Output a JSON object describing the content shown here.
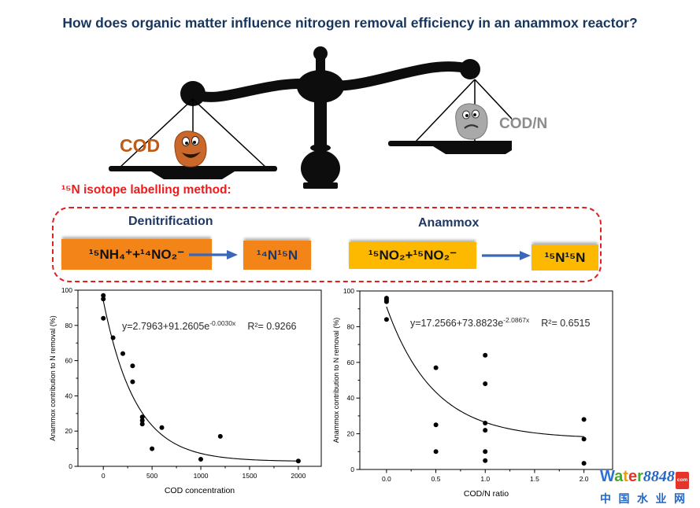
{
  "title": "How does organic matter influence nitrogen removal efficiency in an anammox reactor?",
  "balance": {
    "left_label": "COD",
    "right_label": "COD/N",
    "left_label_color": "#BF5B16",
    "right_label_color": "#8C8C8C"
  },
  "method": {
    "heading": "¹⁵N isotope labelling method:",
    "heading_color": "#EE1C1C",
    "arrow_color": "#3A67B8",
    "processes": [
      {
        "name": "Denitrification",
        "reactant": "¹⁵NH₄⁺+¹⁴NO₂⁻",
        "product": "¹⁴N¹⁵N",
        "box_color": "#F28418"
      },
      {
        "name": "Anammox",
        "reactant": "¹⁵NO₂+¹⁵NO₂⁻",
        "product": "¹⁵N¹⁵N",
        "box_color": "#FCB900"
      }
    ]
  },
  "chart_data": [
    {
      "type": "scatter",
      "title": "",
      "xlabel": "COD concentration",
      "ylabel": "Anammox contribution to N removal (%)",
      "xlim": [
        -260,
        2235
      ],
      "ylim": [
        0,
        100
      ],
      "xticks": [
        {
          "v": 0,
          "l": "0"
        },
        {
          "v": 500,
          "l": "500"
        },
        {
          "v": 1000,
          "l": "1000"
        },
        {
          "v": 1500,
          "l": "1500"
        },
        {
          "v": 2000,
          "l": "2000"
        }
      ],
      "yticks": [
        0,
        20,
        40,
        60,
        80,
        100
      ],
      "xminors": [
        250,
        750,
        1250,
        1750
      ],
      "yminors": [
        10,
        30,
        50,
        70,
        90
      ],
      "points": [
        [
          0,
          97
        ],
        [
          0,
          95
        ],
        [
          0,
          84
        ],
        [
          100,
          73
        ],
        [
          200,
          64
        ],
        [
          300,
          57
        ],
        [
          300,
          48
        ],
        [
          400,
          28
        ],
        [
          400,
          26
        ],
        [
          400,
          24
        ],
        [
          500,
          10
        ],
        [
          600,
          22
        ],
        [
          1000,
          4
        ],
        [
          1200,
          17
        ],
        [
          2000,
          3
        ]
      ],
      "fit": {
        "a": 2.7963,
        "b": 91.2605,
        "k": -0.003,
        "x_start": 0,
        "x_end": 2000
      },
      "equation": {
        "lhs": "y=2.7963+91.2605e",
        "exp": "-0.0030x",
        "r2": "R²= 0.9266"
      }
    },
    {
      "type": "scatter",
      "title": "",
      "xlabel": "COD/N ratio",
      "ylabel": "Anammox contribution to N removal (%)",
      "xlim": [
        -0.27,
        2.29
      ],
      "ylim": [
        0,
        100
      ],
      "xticks": [
        {
          "v": 0,
          "l": "0.0"
        },
        {
          "v": 0.5,
          "l": "0.5"
        },
        {
          "v": 1,
          "l": "1.0"
        },
        {
          "v": 1.5,
          "l": "1.5"
        },
        {
          "v": 2,
          "l": "2.0"
        }
      ],
      "yticks": [
        0,
        20,
        40,
        60,
        80,
        100
      ],
      "xminors": [
        0.25,
        0.75,
        1.25,
        1.75
      ],
      "yminors": [
        10,
        30,
        50,
        70,
        90
      ],
      "points": [
        [
          0,
          96
        ],
        [
          0,
          95
        ],
        [
          0,
          94
        ],
        [
          0,
          84
        ],
        [
          0.5,
          57
        ],
        [
          0.5,
          25
        ],
        [
          0.5,
          10
        ],
        [
          1,
          64
        ],
        [
          1,
          48
        ],
        [
          1,
          26
        ],
        [
          1,
          22
        ],
        [
          1,
          10
        ],
        [
          1,
          5
        ],
        [
          2,
          28
        ],
        [
          2,
          17
        ],
        [
          2,
          3.5
        ]
      ],
      "fit": {
        "a": 17.2566,
        "b": 73.8823,
        "k": -2.0867,
        "x_start": 0,
        "x_end": 2
      },
      "equation": {
        "lhs": "y=17.2566+73.8823e",
        "exp": "-2.0867x",
        "r2": "R²= 0.6515"
      }
    }
  ],
  "logo": {
    "water_letters": [
      [
        "W",
        "#2E6FD2"
      ],
      [
        "a",
        "#46A926"
      ],
      [
        "t",
        "#F59B00"
      ],
      [
        "e",
        "#E5352B"
      ],
      [
        "r",
        "#46A926"
      ]
    ],
    "number": "8848",
    "com": "com",
    "chinese": "中国水业网",
    "blue": "#2268C8"
  }
}
